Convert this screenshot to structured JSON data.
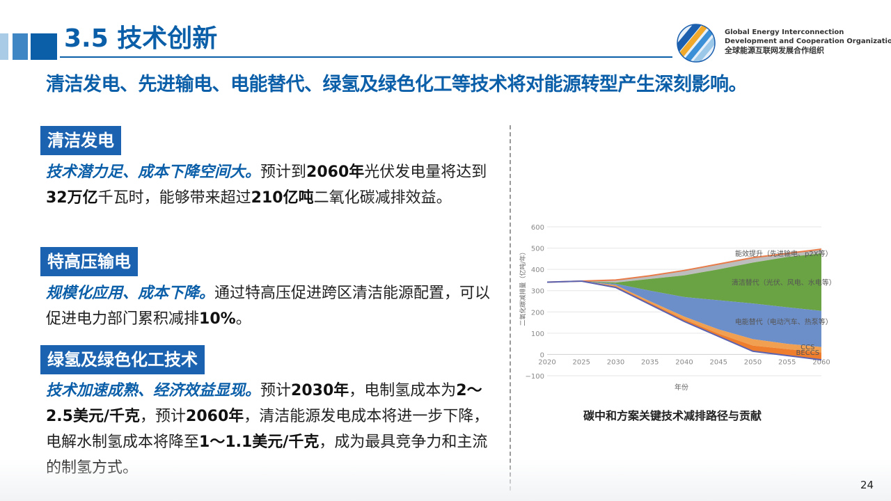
{
  "header": {
    "title": "3.5 技术创新",
    "logo_en_line1": "Global Energy Interconnection",
    "logo_en_line2": "Development and Cooperation Organization",
    "logo_cn": "全球能源互联网发展合作组织"
  },
  "subtitle": "清洁发电、先进输电、电能替代、绿氢及绿色化工等技术将对能源转型产生深刻影响。",
  "sections": [
    {
      "tag": "清洁发电",
      "lead": "技术潜力足、成本下降空间大。",
      "t1": "预计到",
      "b1": "2060年",
      "t2": "光伏发电量将达到",
      "b2": "32万亿",
      "t3": "千瓦时，能够带来超过",
      "b3": "210亿吨",
      "t4": "二氧化碳减排效益。"
    },
    {
      "tag": "特高压输电",
      "lead": "规模化应用、成本下降。",
      "t1": "通过特高压促进跨区清洁能源配置，可以促进电力部门累积减排",
      "b1": "10%",
      "t2": "。"
    },
    {
      "tag": "绿氢及绿色化工技术",
      "lead": "技术加速成熟、经济效益显现。",
      "t1": "预计",
      "b1": "2030年",
      "t2": "，电制氢成本为",
      "b2": "2～2.5美元/千克",
      "t3": "，预计",
      "b3": "2060年",
      "t4": "，清洁能源发电成本将进一步下降，电解水制氢成本将降至",
      "b4": "1～1.1美元/千克",
      "t5": "，成为最具竞争力和主流的制氢方式。"
    }
  ],
  "chart_caption": "碳中和方案关键技术减排路径与贡献",
  "page_number": "24",
  "chart_data": {
    "type": "area",
    "xlabel": "年份",
    "ylabel": "二氧化碳减排量（亿吨/年）",
    "x": [
      2020,
      2025,
      2030,
      2035,
      2040,
      2045,
      2050,
      2055,
      2060
    ],
    "xticks": [
      "2020",
      "2025",
      "2030",
      "2035",
      "2040",
      "2045",
      "2050",
      "2055",
      "2060"
    ],
    "yticks": [
      "600",
      "500",
      "400",
      "300",
      "200",
      "100",
      "0",
      "−100"
    ],
    "ylim": [
      -100,
      600
    ],
    "baseline": [
      340,
      345,
      350,
      370,
      395,
      425,
      455,
      475,
      495
    ],
    "bottom_line": [
      340,
      345,
      315,
      235,
      155,
      85,
      15,
      -5,
      -25
    ],
    "series": [
      {
        "name": "能效提升（先进输电、p2X等）",
        "color": "#bdbdbd",
        "lower": [
          340,
          345,
          338,
          355,
          372,
          400,
          432,
          458,
          475
        ],
        "upper": [
          340,
          345,
          350,
          370,
          395,
          425,
          455,
          475,
          495
        ]
      },
      {
        "name": "清洁替代（光伏、风电、水电等）",
        "color": "#6aa343",
        "lower": [
          340,
          345,
          332,
          300,
          270,
          255,
          240,
          222,
          205
        ],
        "upper": [
          340,
          345,
          338,
          355,
          372,
          400,
          432,
          458,
          475
        ]
      },
      {
        "name": "电能替代（电动汽车、热泵等）",
        "color": "#6d8fc9",
        "lower": [
          340,
          345,
          326,
          250,
          178,
          118,
          72,
          50,
          35
        ],
        "upper": [
          340,
          345,
          332,
          300,
          270,
          255,
          240,
          222,
          205
        ]
      },
      {
        "name": "CCS",
        "color": "#f0a050",
        "lower": [
          340,
          345,
          320,
          242,
          165,
          98,
          42,
          25,
          10
        ],
        "upper": [
          340,
          345,
          326,
          250,
          178,
          118,
          72,
          50,
          35
        ]
      },
      {
        "name": "BECCS",
        "color": "#ee7d2e",
        "lower": [
          340,
          345,
          315,
          235,
          155,
          85,
          15,
          -5,
          -25
        ],
        "upper": [
          340,
          345,
          320,
          242,
          165,
          98,
          42,
          25,
          10
        ]
      }
    ],
    "colors": {
      "baseline_line": "#e87b4a",
      "bottom_line": "#5b62b0",
      "grid": "#e6e6e6"
    },
    "grid": true
  }
}
